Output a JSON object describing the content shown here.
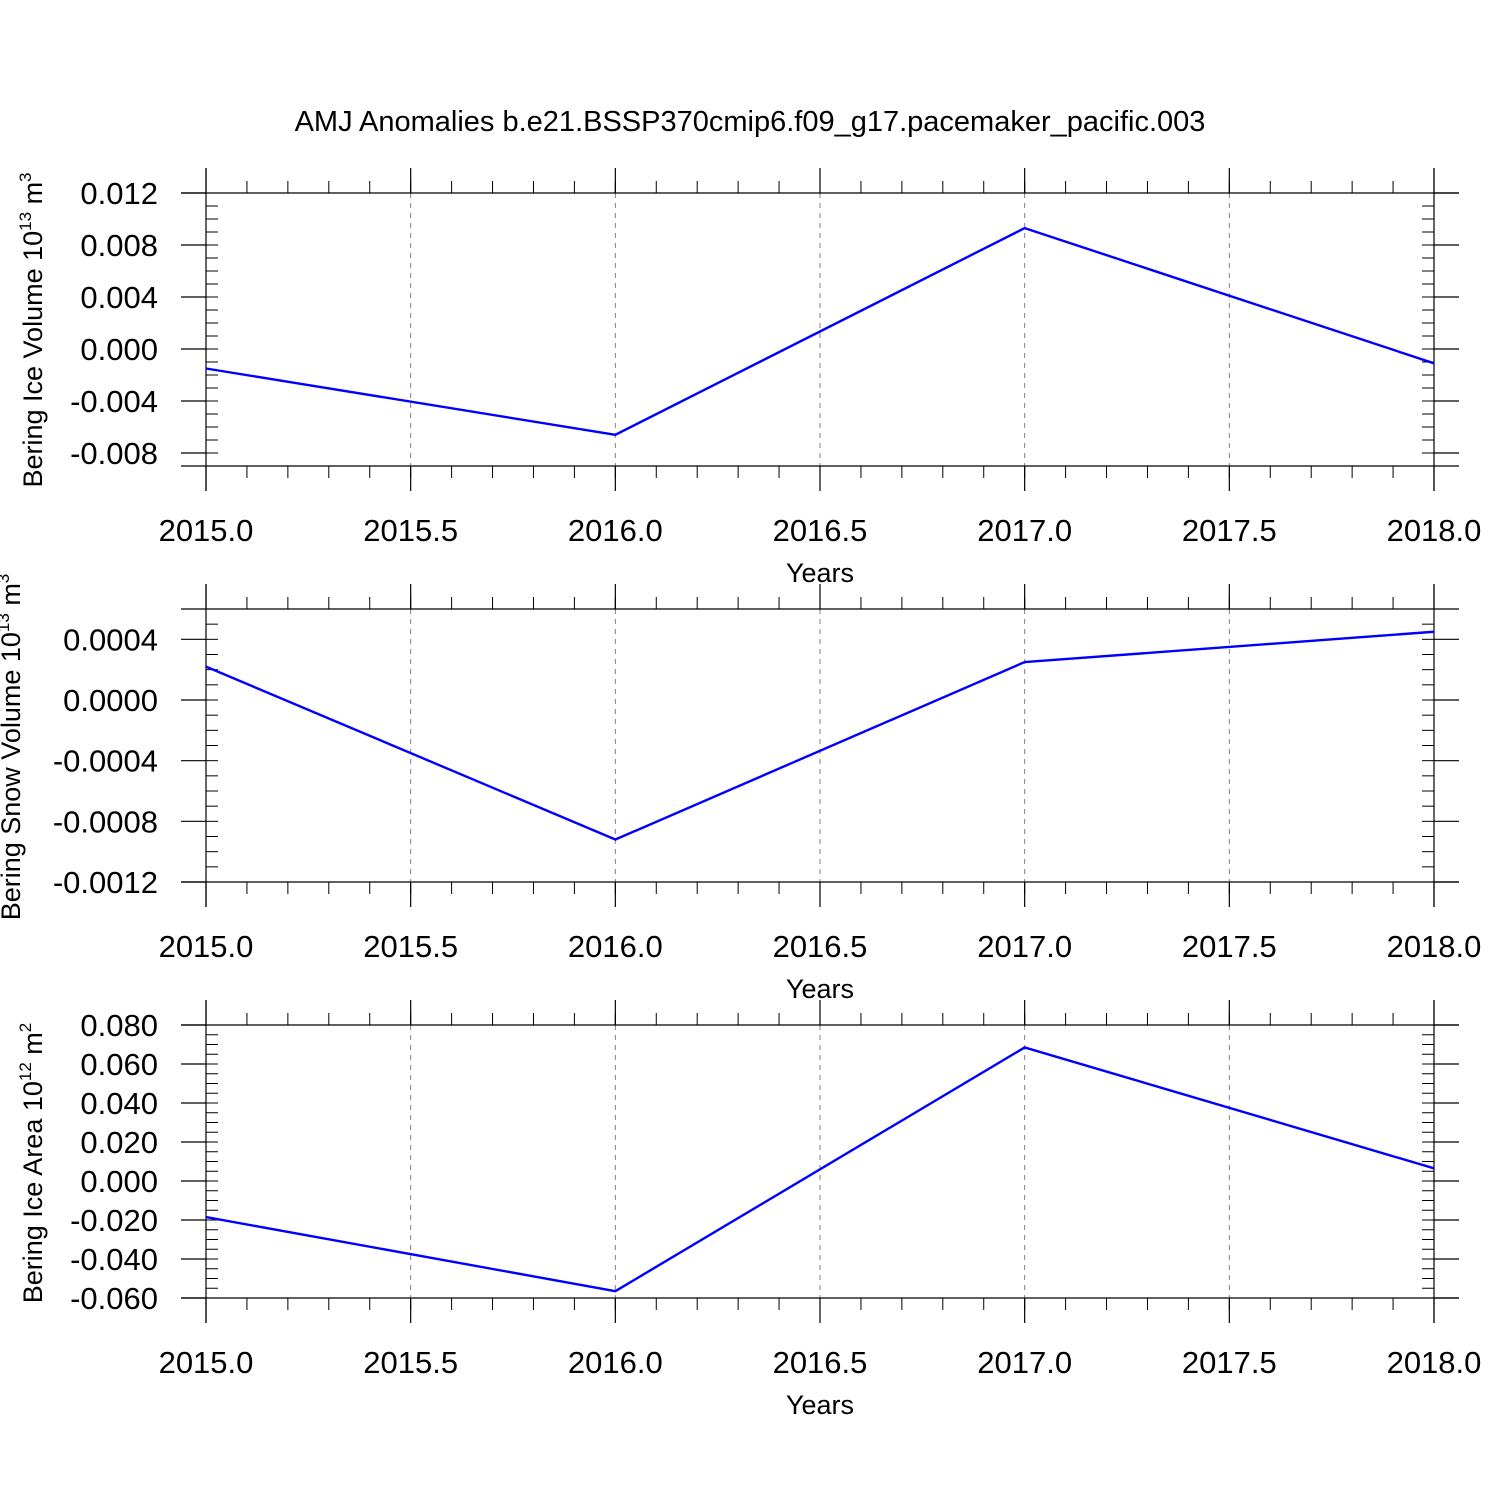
{
  "title": "AMJ Anomalies b.e21.BSSP370cmip6.f09_g17.pacemaker_pacific.003",
  "colors": {
    "line": "#0000ff",
    "axis": "#000000",
    "grid": "#808080",
    "background": "#ffffff"
  },
  "chart_data": [
    {
      "type": "line",
      "title": "",
      "xlabel": "Years",
      "ylabel_text": "Bering Ice Volume 10",
      "ylabel_exp": "13",
      "ylabel_unit": " m",
      "ylabel_unit_exp": "3",
      "xlim": [
        2015.0,
        2018.0
      ],
      "ylim": [
        -0.009,
        0.012
      ],
      "x_ticks": [
        "2015.0",
        "2015.5",
        "2016.0",
        "2016.5",
        "2017.0",
        "2017.5",
        "2018.0"
      ],
      "x_tick_values": [
        2015.0,
        2015.5,
        2016.0,
        2016.5,
        2017.0,
        2017.5,
        2018.0
      ],
      "y_ticks": [
        "-0.008",
        "-0.004",
        "0.000",
        "0.004",
        "0.008",
        "0.012"
      ],
      "y_tick_values": [
        -0.008,
        -0.004,
        0.0,
        0.004,
        0.008,
        0.012
      ],
      "grid": "vertical dashed",
      "series": [
        {
          "x": [
            2015.0,
            2016.0,
            2017.0,
            2018.0
          ],
          "y": [
            -0.0015,
            -0.0066,
            0.0093,
            -0.0011
          ]
        }
      ]
    },
    {
      "type": "line",
      "title": "",
      "xlabel": "Years",
      "ylabel_text": "Bering Snow Volume 10",
      "ylabel_exp": "13",
      "ylabel_unit": " m",
      "ylabel_unit_exp": "3",
      "xlim": [
        2015.0,
        2018.0
      ],
      "ylim": [
        -0.0012,
        0.0006
      ],
      "x_ticks": [
        "2015.0",
        "2015.5",
        "2016.0",
        "2016.5",
        "2017.0",
        "2017.5",
        "2018.0"
      ],
      "x_tick_values": [
        2015.0,
        2015.5,
        2016.0,
        2016.5,
        2017.0,
        2017.5,
        2018.0
      ],
      "y_ticks": [
        "-0.0012",
        "-0.0008",
        "-0.0004",
        "0.0000",
        "0.0004"
      ],
      "y_tick_values": [
        -0.0012,
        -0.0008,
        -0.0004,
        0.0,
        0.0004
      ],
      "grid": "vertical dashed",
      "series": [
        {
          "x": [
            2015.0,
            2016.0,
            2017.0,
            2018.0
          ],
          "y": [
            0.00022,
            -0.00092,
            0.00025,
            0.00045
          ]
        }
      ]
    },
    {
      "type": "line",
      "title": "",
      "xlabel": "Years",
      "ylabel_text": "Bering Ice Area 10",
      "ylabel_exp": "12",
      "ylabel_unit": " m",
      "ylabel_unit_exp": "2",
      "xlim": [
        2015.0,
        2018.0
      ],
      "ylim": [
        -0.06,
        0.08
      ],
      "x_ticks": [
        "2015.0",
        "2015.5",
        "2016.0",
        "2016.5",
        "2017.0",
        "2017.5",
        "2018.0"
      ],
      "x_tick_values": [
        2015.0,
        2015.5,
        2016.0,
        2016.5,
        2017.0,
        2017.5,
        2018.0
      ],
      "y_ticks": [
        "-0.060",
        "-0.040",
        "-0.020",
        "0.000",
        "0.020",
        "0.040",
        "0.060",
        "0.080"
      ],
      "y_tick_values": [
        -0.06,
        -0.04,
        -0.02,
        0.0,
        0.02,
        0.04,
        0.06,
        0.08
      ],
      "grid": "vertical dashed",
      "series": [
        {
          "x": [
            2015.0,
            2016.0,
            2017.0,
            2018.0
          ],
          "y": [
            -0.0185,
            -0.0565,
            0.0685,
            0.0065
          ]
        }
      ]
    }
  ]
}
